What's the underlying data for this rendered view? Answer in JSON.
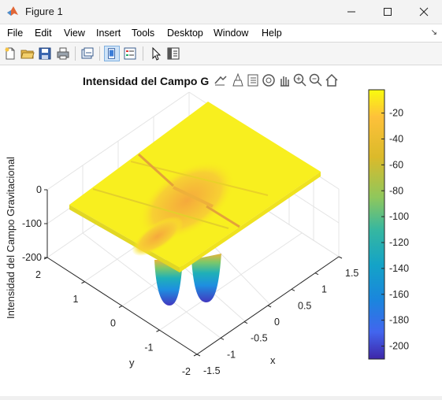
{
  "window": {
    "title": "Figure 1",
    "minimize_glyph": "—",
    "close_glyph": "✕"
  },
  "menu": {
    "items": [
      "File",
      "Edit",
      "View",
      "Insert",
      "Tools",
      "Desktop",
      "Window",
      "Help"
    ],
    "overflow_glyph": "↘"
  },
  "toolbar": {
    "icons": [
      "new-figure-icon",
      "open-file-icon",
      "save-icon",
      "print-icon",
      "link-plot-icon",
      "dock-icon",
      "legend-icon",
      "pointer-icon",
      "property-inspector-icon"
    ]
  },
  "axes_toolbar": {
    "icons": [
      "brush-icon",
      "data-tip-icon",
      "rotate-3d-icon",
      "pan-icon",
      "zoom-in-icon",
      "zoom-out-icon",
      "home-icon",
      "export-icon"
    ]
  },
  "chart_data": {
    "type": "surface",
    "title": "Intensidad del Campo G",
    "zlabel": "Intensidad del Campo Gravitacional",
    "xlabel": "x",
    "ylabel": "y",
    "x_ticks": [
      "-1.5",
      "-1",
      "-0.5",
      "0",
      "0.5",
      "1",
      "1.5"
    ],
    "y_ticks": [
      "-2",
      "-1",
      "0",
      "1",
      "2"
    ],
    "z_ticks": [
      "-200",
      "-100",
      "0"
    ],
    "xlim": [
      -1.5,
      1.5
    ],
    "ylim": [
      -2,
      2
    ],
    "zlim": [
      -210,
      0
    ],
    "grid": true,
    "colormap": "parula",
    "colorbar": {
      "location": "right",
      "ticks": [
        "-20",
        "-40",
        "-60",
        "-80",
        "-100",
        "-120",
        "-140",
        "-160",
        "-180",
        "-200"
      ],
      "range": [
        -210,
        -2
      ]
    }
  }
}
